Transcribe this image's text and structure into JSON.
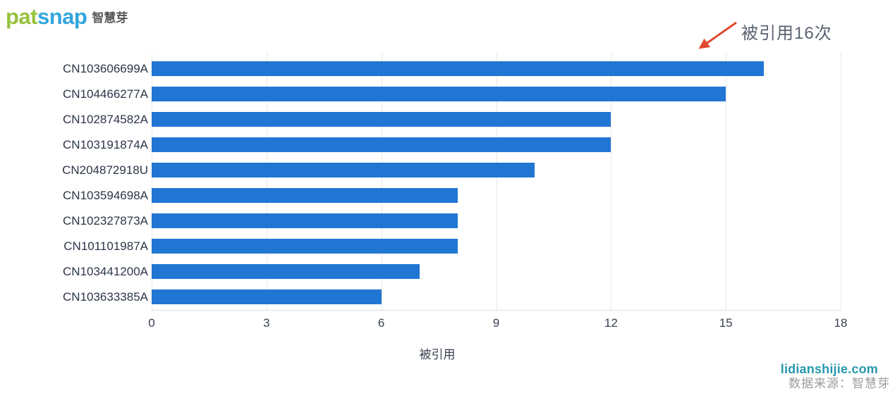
{
  "logo": {
    "pat": "pat",
    "snap": "snap",
    "suffix": "智慧芽"
  },
  "annotation": {
    "text": "被引用16次"
  },
  "chart_data": {
    "type": "bar",
    "orientation": "horizontal",
    "title": "",
    "categories": [
      "CN103606699A",
      "CN104466277A",
      "CN102874582A",
      "CN103191874A",
      "CN204872918U",
      "CN103594698A",
      "CN102327873A",
      "CN101101987A",
      "CN103441200A",
      "CN103633385A"
    ],
    "values": [
      16,
      15,
      12,
      12,
      10,
      8,
      8,
      8,
      7,
      6
    ],
    "xlabel": "被引用",
    "ylabel": "",
    "xlim": [
      0,
      18
    ],
    "xticks": [
      0,
      3,
      6,
      9,
      12,
      15,
      18
    ],
    "grid": true,
    "legend": false,
    "bar_color": "#2176d3",
    "annotation": "被引用16次"
  },
  "footer": {
    "watermark": "lidianshijie.com",
    "source": "数据来源：智慧芽"
  },
  "colors": {
    "bar": "#2176d3",
    "grid": "#e8e8e8",
    "axis_line": "#dedede",
    "axis_text": "#39414f",
    "category_text": "#2c3547",
    "annotation_text": "#5a6271",
    "arrow": "#e0492f",
    "logo_green": "#96c23d",
    "logo_blue": "#32a6dc",
    "logo_gray": "#595757",
    "watermark": "#2798ad",
    "source_text": "#9c9c9c"
  }
}
